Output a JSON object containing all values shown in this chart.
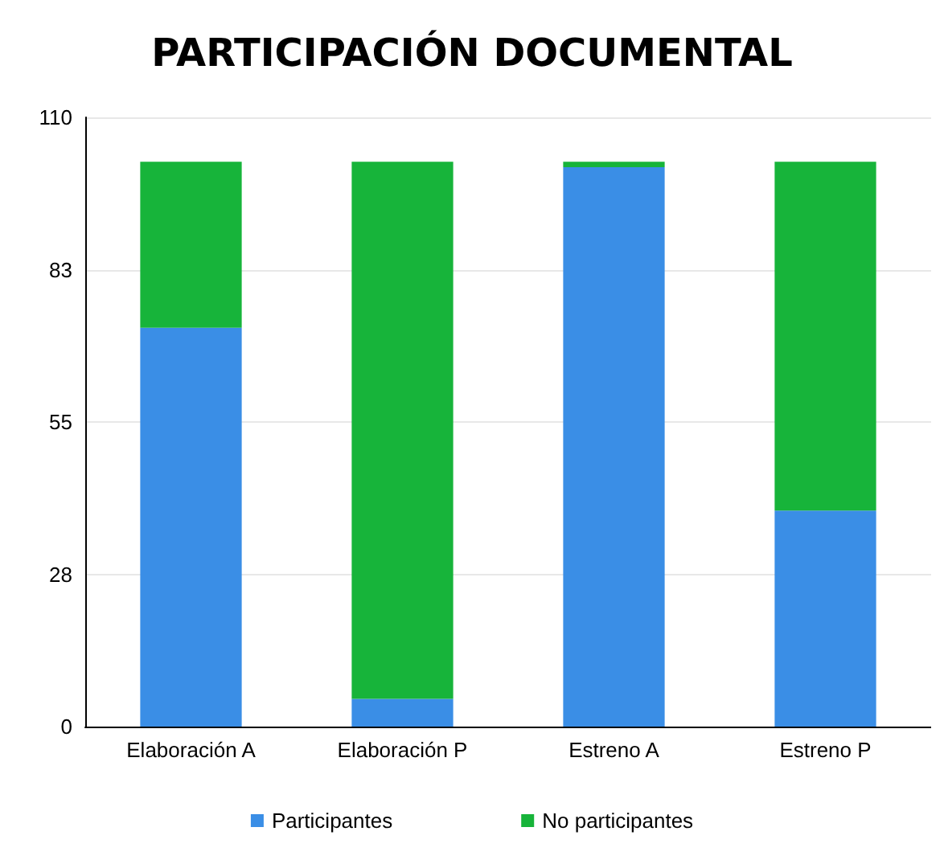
{
  "chart_data": {
    "type": "bar",
    "title": "PARTICIPACIÓN DOCUMENTAL",
    "categories": [
      "Elaboración A",
      "Elaboración P",
      "Estreno A",
      "Estreno P"
    ],
    "stacked": true,
    "series": [
      {
        "name": "Participantes",
        "color": "#3a8ee6",
        "values": [
          72,
          5,
          101,
          39
        ]
      },
      {
        "name": "No participantes",
        "color": "#17b43a",
        "values": [
          30,
          97,
          1,
          63
        ]
      }
    ],
    "ylim": [
      0,
      110
    ],
    "yticks": [
      0,
      {
        "value": 27.5,
        "label": "28"
      },
      55,
      {
        "value": 82.5,
        "label": "83"
      },
      110
    ],
    "grid": "y",
    "legend": "bottom"
  }
}
